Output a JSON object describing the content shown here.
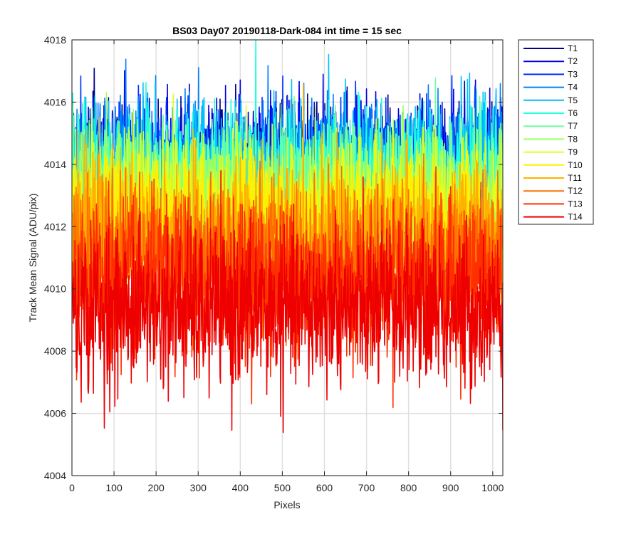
{
  "chart_data": {
    "type": "line",
    "title": "BS03 Day07 20190118-Dark-084 int time = 15 sec",
    "xlabel": "Pixels",
    "ylabel": "Track Mean Signal (ADU/pix)",
    "xlim": [
      0,
      1024
    ],
    "ylim": [
      4004,
      4018
    ],
    "xticks": [
      0,
      100,
      200,
      300,
      400,
      500,
      600,
      700,
      800,
      900,
      1000
    ],
    "yticks": [
      4004,
      4006,
      4008,
      4010,
      4012,
      4014,
      4016,
      4018
    ],
    "grid": true,
    "legend_position": "outside-top-right",
    "x_points": 1024,
    "series": [
      {
        "name": "T1",
        "color": "#00008f",
        "mean": 4013.9,
        "noise": 1.0
      },
      {
        "name": "T2",
        "color": "#0000dd",
        "mean": 4013.9,
        "noise": 1.0
      },
      {
        "name": "T3",
        "color": "#0030ff",
        "mean": 4013.9,
        "noise": 1.0
      },
      {
        "name": "T4",
        "color": "#0080ff",
        "mean": 4013.9,
        "noise": 1.0
      },
      {
        "name": "T5",
        "color": "#00c0ff",
        "mean": 4013.8,
        "noise": 1.0
      },
      {
        "name": "T6",
        "color": "#20ffdf",
        "mean": 4013.6,
        "noise": 1.0
      },
      {
        "name": "T7",
        "color": "#70ffa0",
        "mean": 4013.3,
        "noise": 1.0
      },
      {
        "name": "T8",
        "color": "#9fff60",
        "mean": 4013.0,
        "noise": 1.0
      },
      {
        "name": "T9",
        "color": "#dfff20",
        "mean": 4012.6,
        "noise": 1.0
      },
      {
        "name": "T10",
        "color": "#ffef00",
        "mean": 4012.2,
        "noise": 1.05
      },
      {
        "name": "T11",
        "color": "#ffb000",
        "mean": 4011.7,
        "noise": 1.1
      },
      {
        "name": "T12",
        "color": "#ff6f00",
        "mean": 4011.0,
        "noise": 1.15
      },
      {
        "name": "T13",
        "color": "#ff3000",
        "mean": 4010.3,
        "noise": 1.2
      },
      {
        "name": "T14",
        "color": "#ee0000",
        "mean": 4009.3,
        "noise": 1.2
      }
    ]
  }
}
